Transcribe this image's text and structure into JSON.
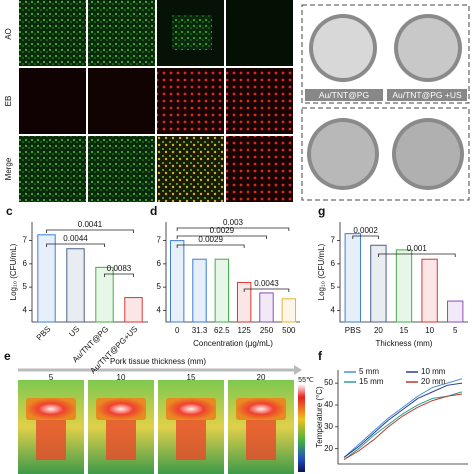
{
  "microscopy": {
    "rows": [
      "AO",
      "EB",
      "Merge"
    ]
  },
  "plates": {
    "labels": [
      "Au/TNT@PG",
      "Au/TNT@PG +US"
    ]
  },
  "thermal": {
    "panel": "e",
    "title": "Pork tissue thickness (mm)",
    "labels": [
      "5",
      "10",
      "15",
      "20"
    ],
    "scale_max": "55℃"
  },
  "chart_data": [
    {
      "type": "bar",
      "panel": "c",
      "ylabel": "Log₁₀ (CFU/mL)",
      "categories": [
        "PBS",
        "US",
        "Au/TNT@PG",
        "Au/TNT@PG+US"
      ],
      "values": [
        7.25,
        6.65,
        5.85,
        4.55
      ],
      "colors": [
        "#3a7fd5",
        "#4a5f8a",
        "#3fae49",
        "#d9352f"
      ],
      "ylim": [
        3.5,
        7.8
      ],
      "yticks": [
        4,
        5,
        6,
        7
      ],
      "p_values": [
        0.0041,
        0.0044,
        0.0083
      ]
    },
    {
      "type": "bar",
      "panel": "d",
      "xlabel": "Concentration (μg/mL)",
      "categories": [
        "0",
        "31.3",
        "62.5",
        "125",
        "250",
        "500"
      ],
      "values": [
        7.0,
        6.2,
        6.2,
        5.2,
        4.75,
        4.5
      ],
      "colors": [
        "#3a7fd5",
        "#3a7fd5",
        "#3fae49",
        "#d9352f",
        "#8a4fb5",
        "#e0b43a"
      ],
      "ylim": [
        3.5,
        7.8
      ],
      "yticks": [
        4,
        5,
        6,
        7
      ],
      "p_values": [
        0.003,
        0.0029,
        0.0029,
        0.0043
      ]
    },
    {
      "type": "bar",
      "panel": "g",
      "ylabel": "Log₁₀ (CFU/mL)",
      "xlabel": "Thickness (mm)",
      "categories": [
        "PBS",
        "20",
        "15",
        "10",
        "5"
      ],
      "values": [
        7.3,
        6.8,
        6.6,
        6.2,
        4.4
      ],
      "colors": [
        "#3a7fd5",
        "#4a5f8a",
        "#3fae49",
        "#d9352f",
        "#8a4fb5"
      ],
      "ylim": [
        3.5,
        7.8
      ],
      "yticks": [
        4,
        5,
        6,
        7
      ],
      "p_values": [
        0.0002,
        0.001
      ]
    },
    {
      "type": "line",
      "panel": "f",
      "ylabel": "Temperature (°C)",
      "categories": [
        null,
        null,
        null,
        null,
        null,
        null,
        null,
        null,
        null
      ],
      "series": [
        {
          "name": "5 mm",
          "color": "#4a90d9",
          "values": [
            16,
            22,
            28,
            34,
            39,
            44,
            48,
            50,
            52
          ]
        },
        {
          "name": "10 mm",
          "color": "#2b3f8c",
          "values": [
            16,
            21,
            27,
            33,
            38,
            43,
            46,
            49,
            50
          ]
        },
        {
          "name": "15 mm",
          "color": "#2aa198",
          "values": [
            15,
            20,
            26,
            31,
            36,
            40,
            43,
            44,
            46
          ]
        },
        {
          "name": "20 mm",
          "color": "#c0392b",
          "values": [
            15,
            19,
            24,
            30,
            35,
            39,
            42,
            44,
            45
          ]
        }
      ],
      "ylim": [
        13,
        56
      ],
      "yticks": [
        20,
        30,
        40,
        50
      ]
    }
  ]
}
